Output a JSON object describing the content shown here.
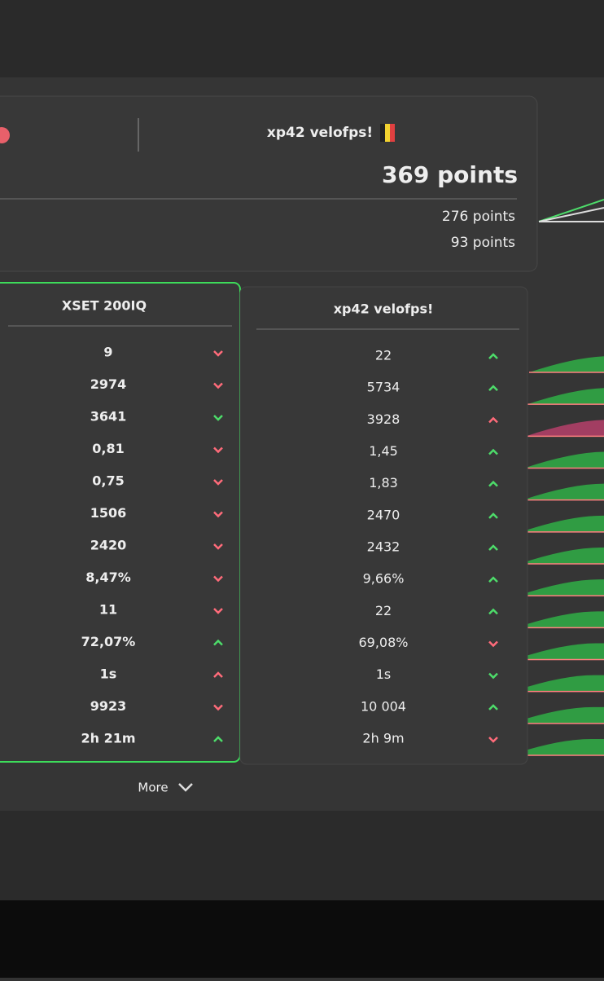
{
  "header": {
    "player_name": "xp42 velofps!",
    "total_points": "369 points",
    "sub_points": [
      "276 points",
      "93 points"
    ]
  },
  "columns": [
    {
      "title": "XSET 200IQ",
      "highlight_color": "#3ddc5a",
      "rows": [
        {
          "value": "9",
          "trend": "down",
          "color": "#ff6b7a"
        },
        {
          "value": "2974",
          "trend": "down",
          "color": "#ff6b7a"
        },
        {
          "value": "3641",
          "trend": "down",
          "color": "#4ddc6a"
        },
        {
          "value": "0,81",
          "trend": "down",
          "color": "#ff6b7a"
        },
        {
          "value": "0,75",
          "trend": "down",
          "color": "#ff6b7a"
        },
        {
          "value": "1506",
          "trend": "down",
          "color": "#ff6b7a"
        },
        {
          "value": "2420",
          "trend": "down",
          "color": "#ff6b7a"
        },
        {
          "value": "8,47%",
          "trend": "down",
          "color": "#ff6b7a"
        },
        {
          "value": "11",
          "trend": "down",
          "color": "#ff6b7a"
        },
        {
          "value": "72,07%",
          "trend": "up",
          "color": "#4ddc6a"
        },
        {
          "value": "1s",
          "trend": "up",
          "color": "#ff6b7a"
        },
        {
          "value": "9923",
          "trend": "down",
          "color": "#ff6b7a"
        },
        {
          "value": "2h 21m",
          "trend": "up",
          "color": "#4ddc6a"
        }
      ]
    },
    {
      "title": "xp42 velofps!",
      "highlight_color": "#454545",
      "rows": [
        {
          "value": "22",
          "trend": "up",
          "color": "#4ddc6a"
        },
        {
          "value": "5734",
          "trend": "up",
          "color": "#4ddc6a"
        },
        {
          "value": "3928",
          "trend": "up",
          "color": "#ff6b7a"
        },
        {
          "value": "1,45",
          "trend": "up",
          "color": "#4ddc6a"
        },
        {
          "value": "1,83",
          "trend": "up",
          "color": "#4ddc6a"
        },
        {
          "value": "2470",
          "trend": "up",
          "color": "#4ddc6a"
        },
        {
          "value": "2432",
          "trend": "up",
          "color": "#4ddc6a"
        },
        {
          "value": "9,66%",
          "trend": "up",
          "color": "#4ddc6a"
        },
        {
          "value": "22",
          "trend": "up",
          "color": "#4ddc6a"
        },
        {
          "value": "69,08%",
          "trend": "down",
          "color": "#ff6b7a"
        },
        {
          "value": "1s",
          "trend": "down",
          "color": "#4ddc6a"
        },
        {
          "value": "10 004",
          "trend": "up",
          "color": "#4ddc6a"
        },
        {
          "value": "2h 9m",
          "trend": "down",
          "color": "#ff6b7a"
        }
      ]
    }
  ],
  "more_button": "More"
}
